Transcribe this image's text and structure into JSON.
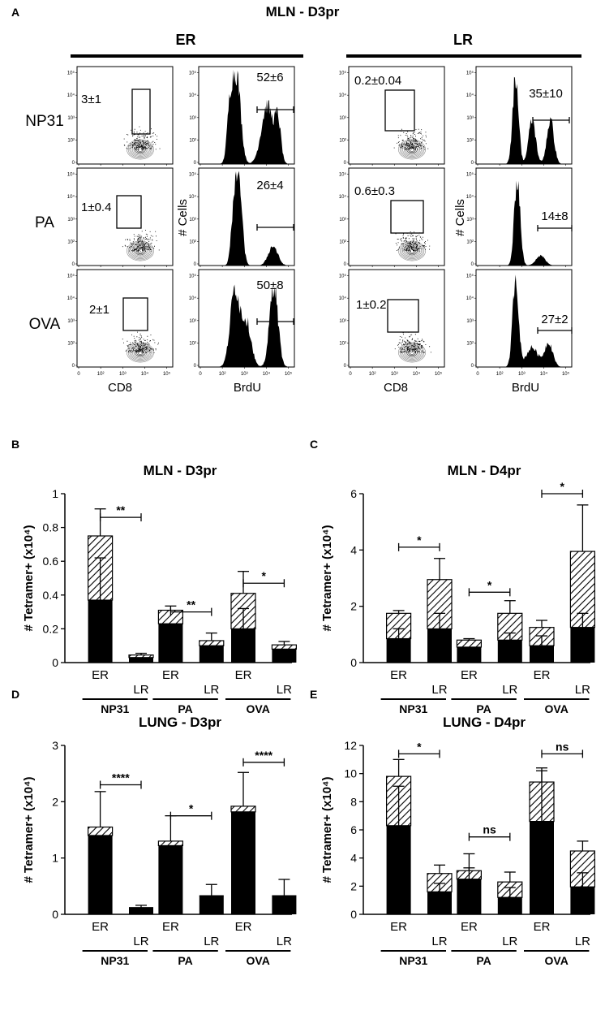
{
  "colors": {
    "bar_fill": "#000000",
    "background": "#ffffff",
    "contour": "#777777"
  },
  "panel_a": {
    "letter": "A",
    "title": "MLN - D3pr",
    "groups": [
      "ER",
      "LR"
    ],
    "row_labels": [
      "NP31",
      "PA",
      "OVA"
    ],
    "cd8_xlabel": "CD8",
    "brdu_xlabel": "BrdU",
    "cells_ylabel": "# Cells",
    "log_ticks": [
      "0",
      "10²",
      "10³",
      "10⁴",
      "10⁵"
    ],
    "log_ticks_y": [
      "0",
      "10²",
      "10³",
      "10⁴",
      "10⁵"
    ],
    "gates": {
      "ER": {
        "cd8": [
          "3±1",
          "1±0.4",
          "2±1"
        ],
        "brdu": [
          "52±6",
          "26±4",
          "50±8"
        ]
      },
      "LR": {
        "cd8": [
          "0.2±0.04",
          "0.6±0.3",
          "1±0.2"
        ],
        "brdu": [
          "35±10",
          "14±8",
          "27±2"
        ]
      }
    }
  },
  "chart_data": [
    {
      "type": "bar",
      "letter": "B",
      "title": "MLN - D3pr",
      "ylabel": "# Tetramer+ (x10⁴)",
      "ylim": [
        0,
        1.0
      ],
      "yticks": [
        "0",
        "0.2",
        "0.4",
        "0.6",
        "0.8",
        "1"
      ],
      "bar_labels": [
        "ER",
        "LR",
        "ER",
        "LR",
        "ER",
        "LR"
      ],
      "groups": [
        "NP31",
        "PA",
        "OVA"
      ],
      "series": [
        {
          "name": "solid",
          "values": [
            0.37,
            0.03,
            0.23,
            0.1,
            0.2,
            0.08
          ]
        },
        {
          "name": "hatched",
          "values": [
            0.38,
            0.015,
            0.08,
            0.03,
            0.21,
            0.025
          ]
        }
      ],
      "error_top": [
        0.91,
        0.055,
        0.335,
        0.175,
        0.54,
        0.125
      ],
      "error_mid": [
        0.62,
        null,
        null,
        null,
        0.32,
        null
      ],
      "significance": [
        {
          "label": "**",
          "bars": [
            0,
            1
          ],
          "y": 0.86
        },
        {
          "label": "**",
          "bars": [
            2,
            3
          ],
          "y": 0.3
        },
        {
          "label": "*",
          "bars": [
            4,
            5
          ],
          "y": 0.47
        }
      ]
    },
    {
      "type": "bar",
      "letter": "C",
      "title": "MLN - D4pr",
      "ylabel": "# Tetramer+ (x10⁴)",
      "ylim": [
        0,
        6
      ],
      "yticks": [
        "0",
        "2",
        "4",
        "6"
      ],
      "bar_labels": [
        "ER",
        "LR",
        "ER",
        "LR",
        "ER",
        "LR"
      ],
      "groups": [
        "NP31",
        "PA",
        "OVA"
      ],
      "series": [
        {
          "name": "solid",
          "values": [
            0.85,
            1.2,
            0.55,
            0.8,
            0.6,
            1.25
          ]
        },
        {
          "name": "hatched",
          "values": [
            0.9,
            1.75,
            0.25,
            0.95,
            0.65,
            2.7
          ]
        }
      ],
      "error_top": [
        1.85,
        3.7,
        0.85,
        2.2,
        1.5,
        5.6
      ],
      "error_mid": [
        1.2,
        1.75,
        null,
        1.05,
        0.95,
        1.75
      ],
      "significance": [
        {
          "label": "*",
          "bars": [
            0,
            1
          ],
          "y": 4.1
        },
        {
          "label": "*",
          "bars": [
            2,
            3
          ],
          "y": 2.5
        },
        {
          "label": "*",
          "bars": [
            4,
            5
          ],
          "y": 6.0
        }
      ]
    },
    {
      "type": "bar",
      "letter": "D",
      "title": "LUNG - D3pr",
      "ylabel": "# Tetramer+ (x10⁴)",
      "ylim": [
        0,
        3
      ],
      "yticks": [
        "0",
        "1",
        "2",
        "3"
      ],
      "bar_labels": [
        "ER",
        "LR",
        "ER",
        "LR",
        "ER",
        "LR"
      ],
      "groups": [
        "NP31",
        "PA",
        "OVA"
      ],
      "series": [
        {
          "name": "solid",
          "values": [
            1.4,
            0.12,
            1.22,
            0.33,
            1.82,
            0.33
          ]
        },
        {
          "name": "hatched",
          "values": [
            0.15,
            0.0,
            0.08,
            0.0,
            0.1,
            0.0
          ]
        }
      ],
      "error_top": [
        2.18,
        0.16,
        1.75,
        0.53,
        2.52,
        0.62
      ],
      "error_mid": [
        null,
        null,
        null,
        null,
        null,
        null
      ],
      "significance": [
        {
          "label": "****",
          "bars": [
            0,
            1
          ],
          "y": 2.3
        },
        {
          "label": "*",
          "bars": [
            2,
            3
          ],
          "y": 1.75
        },
        {
          "label": "****",
          "bars": [
            4,
            5
          ],
          "y": 2.7
        }
      ]
    },
    {
      "type": "bar",
      "letter": "E",
      "title": "LUNG - D4pr",
      "ylabel": "# Tetramer+ (x10⁴)",
      "ylim": [
        0,
        12
      ],
      "yticks": [
        "0",
        "2",
        "4",
        "6",
        "8",
        "10",
        "12"
      ],
      "bar_labels": [
        "ER",
        "LR",
        "ER",
        "LR",
        "ER",
        "LR"
      ],
      "groups": [
        "NP31",
        "PA",
        "OVA"
      ],
      "series": [
        {
          "name": "solid",
          "values": [
            6.3,
            1.6,
            2.5,
            1.2,
            6.6,
            1.95
          ]
        },
        {
          "name": "hatched",
          "values": [
            3.5,
            1.3,
            0.6,
            1.1,
            2.8,
            2.55
          ]
        }
      ],
      "error_top": [
        11.0,
        3.5,
        4.3,
        3.0,
        10.4,
        5.2
      ],
      "error_mid": [
        9.1,
        2.2,
        3.3,
        1.9,
        10.2,
        2.95
      ],
      "significance": [
        {
          "label": "*",
          "bars": [
            0,
            1
          ],
          "y": 11.4
        },
        {
          "label": "ns",
          "bars": [
            2,
            3
          ],
          "y": 5.5
        },
        {
          "label": "ns",
          "bars": [
            4,
            5
          ],
          "y": 11.4
        }
      ]
    }
  ]
}
